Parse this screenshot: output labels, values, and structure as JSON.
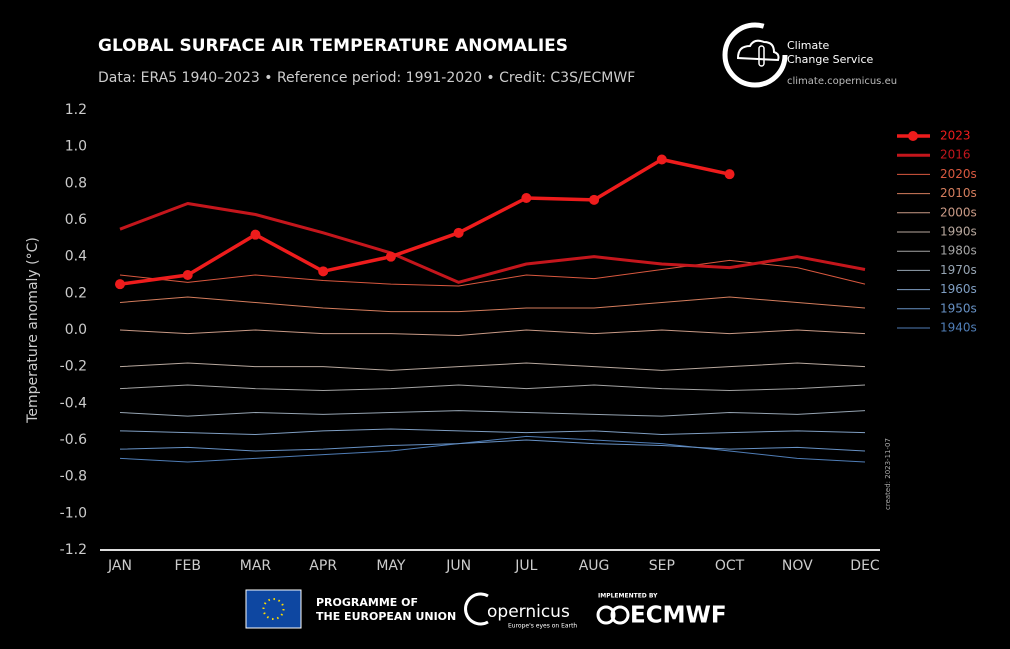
{
  "header": {
    "brand": "Climate",
    "brand2": "Change Service",
    "url": "climate.copernicus.eu",
    "created": "created: 2023-11-07"
  },
  "footer": {
    "eu1": "PROGRAMME OF",
    "eu2": "THE EUROPEAN UNION",
    "copernicus": "opernicus",
    "copernicus_tag": "Europe's eyes on Earth",
    "implemented": "IMPLEMENTED BY",
    "ecmwf": "ECMWF"
  },
  "chart_data": {
    "type": "line",
    "title": "GLOBAL SURFACE AIR TEMPERATURE ANOMALIES",
    "subtitle": "Data: ERA5 1940–2023 • Reference period: 1991-2020 • Credit: C3S/ECMWF",
    "y_label": "Temperature anomaly (°C)",
    "categories": [
      "JAN",
      "FEB",
      "MAR",
      "APR",
      "MAY",
      "JUN",
      "JUL",
      "AUG",
      "SEP",
      "OCT",
      "NOV",
      "DEC"
    ],
    "ylim": [
      -1.2,
      1.2
    ],
    "yticks": [
      1.2,
      {
        "value": 1.0,
        "label": "1.0"
      },
      0.8,
      0.6,
      0.4,
      0.2,
      {
        "value": 0,
        "label": "0.0"
      },
      -0.2,
      -0.4,
      -0.6,
      -0.8,
      {
        "value": -1.0,
        "label": "-1.0"
      },
      -1.2
    ],
    "legend": "right",
    "series": [
      {
        "name": "2023",
        "color": "#ee1c1c",
        "marker": true,
        "values": [
          0.25,
          0.3,
          0.52,
          0.32,
          0.4,
          0.53,
          0.72,
          0.71,
          0.93,
          0.85,
          null,
          null
        ]
      },
      {
        "name": "2016",
        "color": "#c4161c",
        "values": [
          0.55,
          0.69,
          0.63,
          0.53,
          0.42,
          0.26,
          0.36,
          0.4,
          0.36,
          0.34,
          0.4,
          0.33
        ]
      },
      {
        "name": "2020s",
        "color": "#d9583f",
        "values": [
          0.3,
          0.26,
          0.3,
          0.27,
          0.25,
          0.24,
          0.3,
          0.28,
          0.33,
          0.38,
          0.34,
          0.25
        ]
      },
      {
        "name": "2010s",
        "color": "#d47d5d",
        "values": [
          0.15,
          0.18,
          0.15,
          0.12,
          0.1,
          0.1,
          0.12,
          0.12,
          0.15,
          0.18,
          0.15,
          0.12
        ]
      },
      {
        "name": "2000s",
        "color": "#c99a86",
        "values": [
          0.0,
          -0.02,
          0.0,
          -0.02,
          -0.02,
          -0.03,
          0.0,
          -0.02,
          0.0,
          -0.02,
          0.0,
          -0.02
        ]
      },
      {
        "name": "1990s",
        "color": "#b8a89e",
        "values": [
          -0.2,
          -0.18,
          -0.2,
          -0.2,
          -0.22,
          -0.2,
          -0.18,
          -0.2,
          -0.22,
          -0.2,
          -0.18,
          -0.2
        ]
      },
      {
        "name": "1980s",
        "color": "#a4a4a4",
        "values": [
          -0.32,
          -0.3,
          -0.32,
          -0.33,
          -0.32,
          -0.3,
          -0.32,
          -0.3,
          -0.32,
          -0.33,
          -0.32,
          -0.3
        ]
      },
      {
        "name": "1970s",
        "color": "#96a4b2",
        "values": [
          -0.45,
          -0.47,
          -0.45,
          -0.46,
          -0.45,
          -0.44,
          -0.45,
          -0.46,
          -0.47,
          -0.45,
          -0.46,
          -0.44
        ]
      },
      {
        "name": "1960s",
        "color": "#7f9ec2",
        "values": [
          -0.55,
          -0.56,
          -0.57,
          -0.55,
          -0.54,
          -0.55,
          -0.56,
          -0.55,
          -0.57,
          -0.56,
          -0.55,
          -0.56
        ]
      },
      {
        "name": "1950s",
        "color": "#6791c4",
        "values": [
          -0.65,
          -0.64,
          -0.66,
          -0.65,
          -0.63,
          -0.62,
          -0.6,
          -0.62,
          -0.63,
          -0.65,
          -0.64,
          -0.66
        ]
      },
      {
        "name": "1940s",
        "color": "#4f7db6",
        "values": [
          -0.7,
          -0.72,
          -0.7,
          -0.68,
          -0.66,
          -0.62,
          -0.58,
          -0.6,
          -0.62,
          -0.66,
          -0.7,
          -0.72
        ]
      }
    ]
  }
}
